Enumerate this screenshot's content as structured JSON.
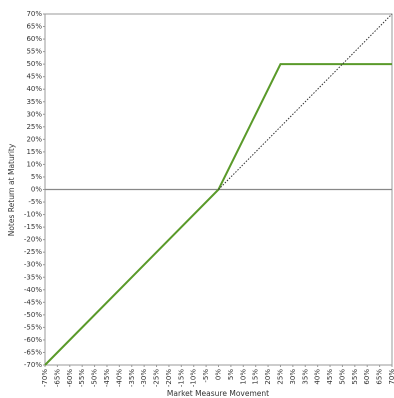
{
  "chart_data": {
    "type": "line",
    "xlabel": "Market Measure Movement",
    "ylabel": "Notes Return at Maturity",
    "series": [
      {
        "color": "#5a9a2a",
        "style": "solid",
        "x": [
          -70,
          0,
          25,
          70
        ],
        "values": [
          -70,
          0,
          50,
          50
        ]
      },
      {
        "color": "#333333",
        "style": "dotted",
        "x": [
          0,
          70
        ],
        "values": [
          0,
          70
        ]
      }
    ],
    "xlim": [
      -70,
      70
    ],
    "ylim": [
      -70,
      70
    ],
    "xticks": [
      {
        "value": -70,
        "label": "-70%"
      },
      {
        "value": -65,
        "label": "-65%"
      },
      {
        "value": -60,
        "label": "-60%"
      },
      {
        "value": -55,
        "label": "-55%"
      },
      {
        "value": -50,
        "label": "-50%"
      },
      {
        "value": -45,
        "label": "-45%"
      },
      {
        "value": -40,
        "label": "-40%"
      },
      {
        "value": -35,
        "label": "-35%"
      },
      {
        "value": -30,
        "label": "-30%"
      },
      {
        "value": -25,
        "label": "-25%"
      },
      {
        "value": -20,
        "label": "-20%"
      },
      {
        "value": -15,
        "label": "-15%"
      },
      {
        "value": -10,
        "label": "-10%"
      },
      {
        "value": -5,
        "label": "-5%"
      },
      {
        "value": 0,
        "label": "0%"
      },
      {
        "value": 5,
        "label": "5%"
      },
      {
        "value": 10,
        "label": "10%"
      },
      {
        "value": 15,
        "label": "15%"
      },
      {
        "value": 20,
        "label": "20%"
      },
      {
        "value": 25,
        "label": "25%"
      },
      {
        "value": 30,
        "label": "30%"
      },
      {
        "value": 35,
        "label": "35%"
      },
      {
        "value": 40,
        "label": "40%"
      },
      {
        "value": 45,
        "label": "45%"
      },
      {
        "value": 50,
        "label": "50%"
      },
      {
        "value": 55,
        "label": "55%"
      },
      {
        "value": 60,
        "label": "60%"
      },
      {
        "value": 65,
        "label": "65%"
      },
      {
        "value": 70,
        "label": "70%"
      }
    ],
    "yticks": [
      {
        "value": -70,
        "label": "-70%"
      },
      {
        "value": -65,
        "label": "-65%"
      },
      {
        "value": -60,
        "label": "-60%"
      },
      {
        "value": -55,
        "label": "-55%"
      },
      {
        "value": -50,
        "label": "-50%"
      },
      {
        "value": -45,
        "label": "-45%"
      },
      {
        "value": -40,
        "label": "-40%"
      },
      {
        "value": -35,
        "label": "-35%"
      },
      {
        "value": -30,
        "label": "-30%"
      },
      {
        "value": -25,
        "label": "-25%"
      },
      {
        "value": -20,
        "label": "-20%"
      },
      {
        "value": -15,
        "label": "-15%"
      },
      {
        "value": -10,
        "label": "-10%"
      },
      {
        "value": -5,
        "label": "-5%"
      },
      {
        "value": 0,
        "label": "0%"
      },
      {
        "value": 5,
        "label": "5%"
      },
      {
        "value": 10,
        "label": "10%"
      },
      {
        "value": 15,
        "label": "15%"
      },
      {
        "value": 20,
        "label": "20%"
      },
      {
        "value": 25,
        "label": "25%"
      },
      {
        "value": 30,
        "label": "30%"
      },
      {
        "value": 35,
        "label": "35%"
      },
      {
        "value": 40,
        "label": "40%"
      },
      {
        "value": 45,
        "label": "45%"
      },
      {
        "value": 50,
        "label": "50%"
      },
      {
        "value": 55,
        "label": "55%"
      },
      {
        "value": 60,
        "label": "60%"
      },
      {
        "value": 65,
        "label": "65%"
      },
      {
        "value": 70,
        "label": "70%"
      }
    ]
  }
}
